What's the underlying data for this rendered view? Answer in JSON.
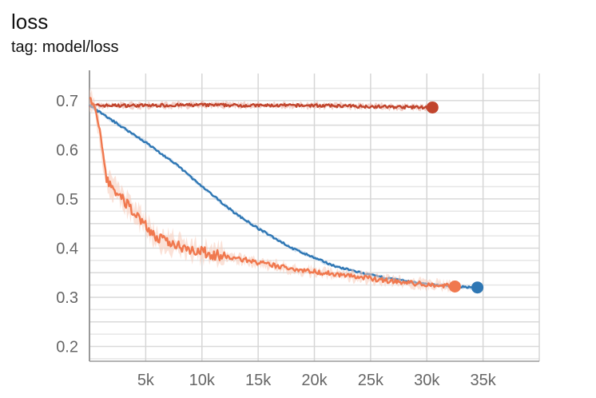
{
  "header": {
    "title": "loss",
    "subtitle": "tag: model/loss"
  },
  "chart_data": {
    "type": "line",
    "title": "loss",
    "subtitle": "tag: model/loss",
    "xlabel": "",
    "ylabel": "",
    "xlim": [
      0,
      40000
    ],
    "ylim": [
      0.17,
      0.755
    ],
    "grid": true,
    "x_ticks": [
      5000,
      10000,
      15000,
      20000,
      25000,
      30000,
      35000
    ],
    "x_tick_labels": [
      "5k",
      "10k",
      "15k",
      "20k",
      "25k",
      "30k",
      "35k"
    ],
    "y_ticks": [
      0.2,
      0.3,
      0.4,
      0.5,
      0.6,
      0.7
    ],
    "y_tick_labels": [
      "0.2",
      "0.3",
      "0.4",
      "0.5",
      "0.6",
      "0.7"
    ],
    "series": [
      {
        "color": "#c1452d",
        "band_color": "#e9a89a",
        "noise": 0.006,
        "end_marker": true,
        "x": [
          0,
          5000,
          10000,
          15000,
          20000,
          25000,
          30500
        ],
        "y": [
          0.69,
          0.69,
          0.691,
          0.69,
          0.69,
          0.688,
          0.686
        ]
      },
      {
        "color": "#2f77b4",
        "band_color": "#a9c8e6",
        "noise": 0.004,
        "end_marker": true,
        "x": [
          0,
          2000,
          5000,
          8000,
          10000,
          13000,
          15000,
          18000,
          20000,
          22000,
          25000,
          28000,
          30000,
          32500,
          34500
        ],
        "y": [
          0.69,
          0.66,
          0.615,
          0.565,
          0.525,
          0.47,
          0.44,
          0.4,
          0.38,
          0.362,
          0.345,
          0.333,
          0.327,
          0.322,
          0.32
        ]
      },
      {
        "color": "#f0784e",
        "band_color": "#f8cbb8",
        "noise": 0.01,
        "end_marker": true,
        "x": [
          0,
          600,
          1000,
          1500,
          2500,
          3500,
          4500,
          6000,
          8000,
          10000,
          12000,
          14000,
          15000,
          17000,
          20000,
          22000,
          25000,
          28000,
          30000,
          32500
        ],
        "y": [
          0.7,
          0.68,
          0.62,
          0.54,
          0.51,
          0.485,
          0.46,
          0.42,
          0.405,
          0.392,
          0.382,
          0.376,
          0.37,
          0.362,
          0.352,
          0.347,
          0.338,
          0.33,
          0.326,
          0.322
        ]
      }
    ]
  }
}
